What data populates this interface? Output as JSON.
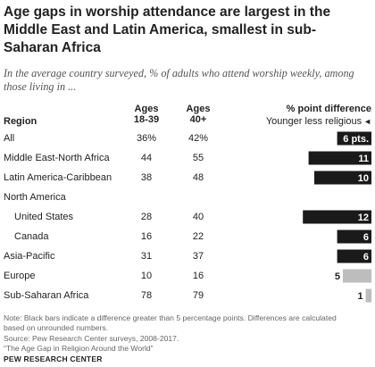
{
  "title": "Age gaps in worship attendance are largest in the Middle East and Latin America, smallest in sub-Saharan Africa",
  "subtitle": "In the average country surveyed, % of adults who attend worship weekly, among those living in ...",
  "headers": {
    "region": "Region",
    "young_line1": "Ages",
    "young_line2": "18-39",
    "old_line1": "Ages",
    "old_line2": "40+",
    "diff": "% point difference",
    "legend": "Younger less religious",
    "legend_arrow": "◄"
  },
  "chart_data": {
    "type": "bar",
    "title": "Age gaps in worship attendance are largest in the Middle East and Latin America, smallest in sub-Saharan Africa",
    "xlabel": "",
    "ylabel": "% point difference",
    "columns": [
      "Ages 18-39",
      "Ages 40+",
      "% point difference"
    ],
    "colors": {
      "large": "#1a1a1a",
      "small": "#bdbdbd"
    },
    "rows": [
      {
        "label": "All",
        "young": "36%",
        "old": "42%",
        "diff": 6,
        "diff_label": "6 pts.",
        "indent": false,
        "significant": true
      },
      {
        "label": "Middle East-North Africa",
        "young": "44",
        "old": "55",
        "diff": 11,
        "diff_label": "11",
        "indent": false,
        "significant": true
      },
      {
        "label": "Latin America-Caribbean",
        "young": "38",
        "old": "48",
        "diff": 10,
        "diff_label": "10",
        "indent": false,
        "significant": true
      },
      {
        "label": "North America",
        "young": "",
        "old": "",
        "diff": null,
        "diff_label": "",
        "indent": false,
        "significant": false
      },
      {
        "label": "United States",
        "young": "28",
        "old": "40",
        "diff": 12,
        "diff_label": "12",
        "indent": true,
        "significant": true
      },
      {
        "label": "Canada",
        "young": "16",
        "old": "22",
        "diff": 6,
        "diff_label": "6",
        "indent": true,
        "significant": true
      },
      {
        "label": "Asia-Pacific",
        "young": "31",
        "old": "37",
        "diff": 6,
        "diff_label": "6",
        "indent": false,
        "significant": true
      },
      {
        "label": "Europe",
        "young": "10",
        "old": "16",
        "diff": 5,
        "diff_label": "5",
        "indent": false,
        "significant": false
      },
      {
        "label": "Sub-Saharan Africa",
        "young": "78",
        "old": "79",
        "diff": 1,
        "diff_label": "1",
        "indent": false,
        "significant": false
      }
    ]
  },
  "notes": {
    "note_line1": "Note: Black bars indicate a difference greater than 5 percentage points. Differences are calculated",
    "note_line2": "based on unrounded numbers.",
    "source": "Source: Pew Research Center surveys, 2008-2017.",
    "report": "“The Age Gap in Religion Around the World”",
    "org": "PEW RESEARCH CENTER"
  }
}
